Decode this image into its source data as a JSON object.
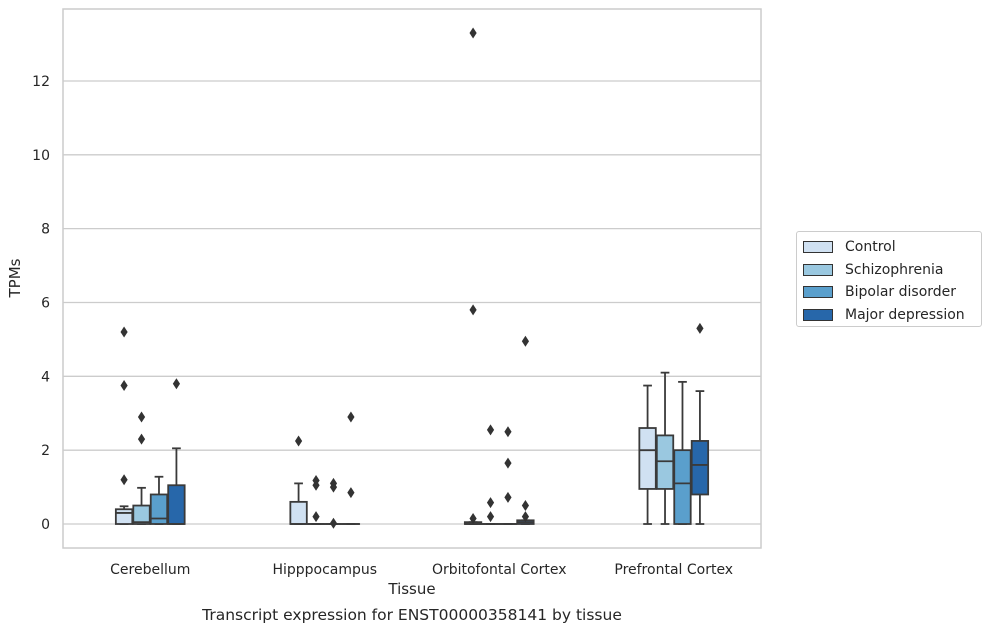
{
  "chart_data": {
    "type": "boxplot",
    "caption": "Transcript expression for ENST00000358141 by tissue",
    "xlabel": "Tissue",
    "ylabel": "TPMs",
    "ylim": [
      -0.65,
      13.95
    ],
    "yticks": [
      0,
      2,
      4,
      6,
      8,
      10,
      12
    ],
    "grid": true,
    "legend_position": "right",
    "categories": [
      "Cerebellum",
      "Hipppocampus",
      "Orbitofontal Cortex",
      "Prefrontal Cortex"
    ],
    "series": [
      {
        "name": "Control",
        "color": "#d0e1f2",
        "boxes": [
          {
            "q1": 0.0,
            "median": 0.3,
            "q3": 0.4,
            "whislo": 0.0,
            "whishi": 0.48,
            "fliers": [
              1.2,
              3.75,
              5.2
            ]
          },
          {
            "q1": 0.0,
            "median": 0.0,
            "q3": 0.6,
            "whislo": 0.0,
            "whishi": 1.1,
            "fliers": [
              2.25
            ]
          },
          {
            "q1": 0.0,
            "median": 0.0,
            "q3": 0.05,
            "whislo": 0.0,
            "whishi": 0.05,
            "fliers": [
              0.15,
              5.8,
              13.3
            ]
          },
          {
            "q1": 0.95,
            "median": 2.0,
            "q3": 2.6,
            "whislo": 0.0,
            "whishi": 3.75,
            "fliers": []
          }
        ]
      },
      {
        "name": "Schizophrenia",
        "color": "#9ac8e0",
        "boxes": [
          {
            "q1": 0.0,
            "median": 0.05,
            "q3": 0.5,
            "whislo": 0.0,
            "whishi": 0.98,
            "fliers": [
              2.3,
              2.9
            ]
          },
          {
            "q1": 0.0,
            "median": 0.0,
            "q3": 0.0,
            "whislo": 0.0,
            "whishi": 0.0,
            "fliers": [
              0.2,
              1.05,
              1.18
            ]
          },
          {
            "q1": 0.0,
            "median": 0.0,
            "q3": 0.0,
            "whislo": 0.0,
            "whishi": 0.0,
            "fliers": [
              0.2,
              0.58,
              2.55
            ]
          },
          {
            "q1": 0.95,
            "median": 1.7,
            "q3": 2.4,
            "whislo": 0.0,
            "whishi": 4.1,
            "fliers": []
          }
        ]
      },
      {
        "name": "Bipolar disorder",
        "color": "#5a9fcc",
        "boxes": [
          {
            "q1": 0.0,
            "median": 0.15,
            "q3": 0.8,
            "whislo": 0.0,
            "whishi": 1.28,
            "fliers": []
          },
          {
            "q1": 0.0,
            "median": 0.0,
            "q3": 0.0,
            "whislo": 0.0,
            "whishi": 0.0,
            "fliers": [
              0.02,
              1.0,
              1.1
            ]
          },
          {
            "q1": 0.0,
            "median": 0.0,
            "q3": 0.0,
            "whislo": 0.0,
            "whishi": 0.0,
            "fliers": [
              0.72,
              1.65,
              2.5
            ]
          },
          {
            "q1": 0.0,
            "median": 1.1,
            "q3": 2.0,
            "whislo": 0.0,
            "whishi": 3.85,
            "fliers": []
          }
        ]
      },
      {
        "name": "Major depression",
        "color": "#2767aa",
        "boxes": [
          {
            "q1": 0.0,
            "median": 0.0,
            "q3": 1.05,
            "whislo": 0.0,
            "whishi": 2.05,
            "fliers": [
              3.8
            ]
          },
          {
            "q1": 0.0,
            "median": 0.0,
            "q3": 0.0,
            "whislo": 0.0,
            "whishi": 0.0,
            "fliers": [
              0.85,
              2.9
            ]
          },
          {
            "q1": 0.0,
            "median": 0.05,
            "q3": 0.1,
            "whislo": 0.0,
            "whishi": 0.1,
            "fliers": [
              0.2,
              0.5,
              4.95
            ]
          },
          {
            "q1": 0.8,
            "median": 1.6,
            "q3": 2.25,
            "whislo": 0.0,
            "whishi": 3.6,
            "fliers": [
              5.3
            ]
          }
        ]
      }
    ]
  }
}
